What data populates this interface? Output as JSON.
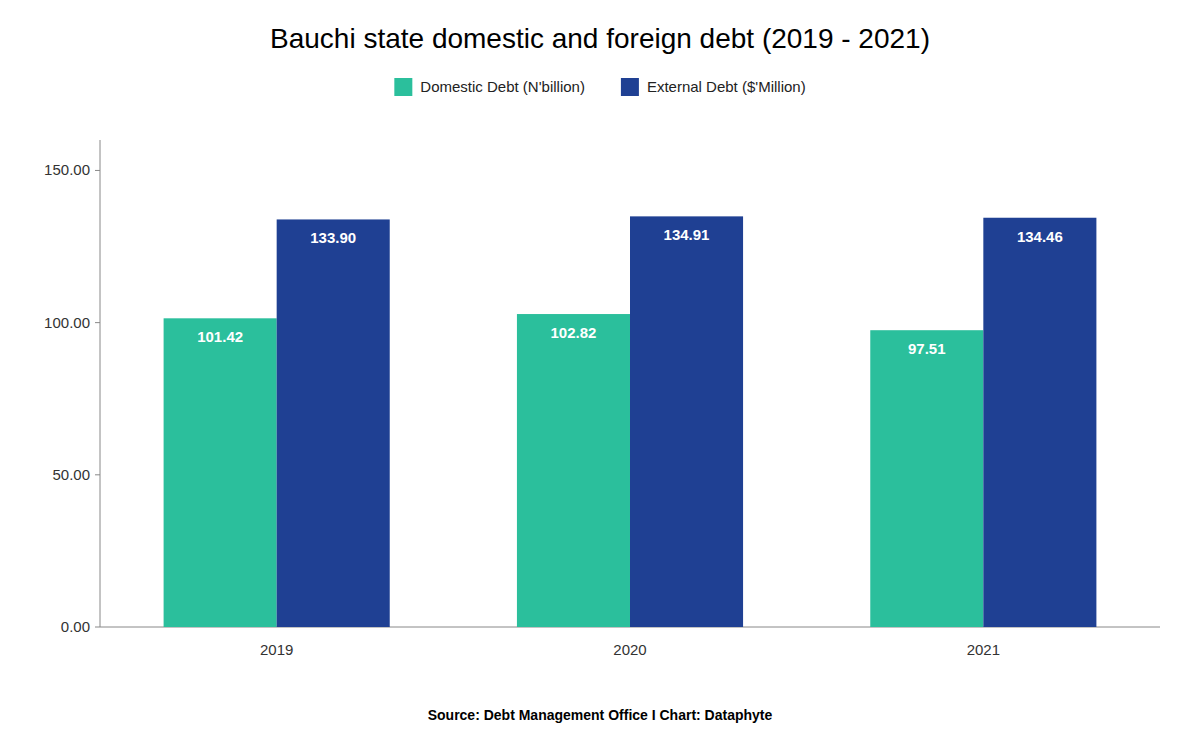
{
  "chart_data": {
    "type": "bar",
    "title": "Bauchi state domestic and foreign debt (2019 - 2021)",
    "categories": [
      "2019",
      "2020",
      "2021"
    ],
    "series": [
      {
        "name": "Domestic Debt (N'billion)",
        "color": "#2bbf9c",
        "values": [
          101.42,
          102.82,
          97.51
        ],
        "value_labels": [
          "101.42",
          "102.82",
          "97.51"
        ]
      },
      {
        "name": "External Debt ($'Million)",
        "color": "#1f4093",
        "values": [
          133.9,
          134.91,
          134.46
        ],
        "value_labels": [
          "133.90",
          "134.91",
          "134.46"
        ]
      }
    ],
    "ylim": [
      0,
      160
    ],
    "yticks": [
      {
        "value": 0,
        "label": "0.00"
      },
      {
        "value": 50,
        "label": "50.00"
      },
      {
        "value": 100,
        "label": "100.00"
      },
      {
        "value": 150,
        "label": "150.00"
      }
    ],
    "grid": false,
    "legend": "top",
    "data_labels": true,
    "annotations": [
      "Source: Debt Management Office I Chart: Dataphyte"
    ]
  }
}
